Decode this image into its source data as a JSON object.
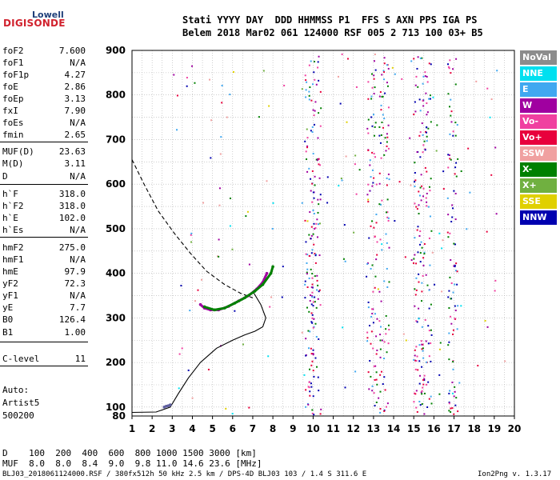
{
  "logo": {
    "top": "Lowell",
    "main": "DIGISONDE"
  },
  "header": {
    "row1": "Stati YYYY DAY  DDD HHMMSS P1  FFS S AXN PPS IGA PS",
    "row2": "Belem 2018 Mar02 061 124000 RSF 005 2 713 100 03+ B5"
  },
  "params": [
    {
      "name": "foF2",
      "value": "7.600"
    },
    {
      "name": "foF1",
      "value": "N/A"
    },
    {
      "name": "foF1p",
      "value": "4.27"
    },
    {
      "name": "foE",
      "value": "2.86"
    },
    {
      "name": "foEp",
      "value": "3.13"
    },
    {
      "name": "fxI",
      "value": "7.90"
    },
    {
      "name": "foEs",
      "value": "N/A"
    },
    {
      "name": "fmin",
      "value": "2.65"
    },
    {
      "name": "MUF(D)",
      "value": "23.63"
    },
    {
      "name": "M(D)",
      "value": "3.11"
    },
    {
      "name": "D",
      "value": "N/A"
    },
    {
      "name": "h`F",
      "value": "318.0"
    },
    {
      "name": "h`F2",
      "value": "318.0"
    },
    {
      "name": "h`E",
      "value": "102.0"
    },
    {
      "name": "h`Es",
      "value": "N/A"
    },
    {
      "name": "hmF2",
      "value": "275.0"
    },
    {
      "name": "hmF1",
      "value": "N/A"
    },
    {
      "name": "hmE",
      "value": "97.9"
    },
    {
      "name": "yF2",
      "value": "72.3"
    },
    {
      "name": "yF1",
      "value": "N/A"
    },
    {
      "name": "yE",
      "value": "7.7"
    },
    {
      "name": "B0",
      "value": "126.4"
    },
    {
      "name": "B1",
      "value": "1.00"
    },
    {
      "name": "C-level",
      "value": "11"
    }
  ],
  "auto": {
    "line1": "Auto:",
    "line2": "Artist5",
    "line3": "500200"
  },
  "legend": [
    {
      "label": "NoVal",
      "color": "#8c8c8c"
    },
    {
      "label": "NNE",
      "color": "#00e0f0"
    },
    {
      "label": "E",
      "color": "#40a8f0"
    },
    {
      "label": "W",
      "color": "#a000a0"
    },
    {
      "label": "Vo-",
      "color": "#f040a0"
    },
    {
      "label": "Vo+",
      "color": "#e8003c"
    },
    {
      "label": "SSW",
      "color": "#f0a0a0"
    },
    {
      "label": "X-",
      "color": "#008000"
    },
    {
      "label": "X+",
      "color": "#70b040"
    },
    {
      "label": "SSE",
      "color": "#e0d000"
    },
    {
      "label": "NNW",
      "color": "#0000b0"
    }
  ],
  "mufTable": {
    "drow": "D    100  200  400  600  800 1000 1500 3000 [km]",
    "mrow": "MUF  8.0  8.0  8.4  9.0  9.8 11.0 14.6 23.6 [MHz]"
  },
  "footer": {
    "left": "BLJ03_2018061124000.RSF / 380fx512h 50 kHz 2.5 km / DPS-4D BLJ03 103 / 1.4 S 311.6 E",
    "right": "Ion2Png v. 1.3.17"
  },
  "chart_data": {
    "type": "scatter",
    "title": "",
    "xlabel": "",
    "ylabel": "",
    "xlim": [
      1,
      20
    ],
    "ylim": [
      80,
      900
    ],
    "xticks": [
      1,
      2,
      3,
      4,
      5,
      6,
      7,
      8,
      9,
      10,
      11,
      12,
      13,
      14,
      15,
      16,
      17,
      18,
      19,
      20
    ],
    "yticks": [
      100,
      200,
      300,
      400,
      500,
      600,
      700,
      800,
      900
    ],
    "yticklabels_extra": [
      80
    ],
    "grid": true,
    "ionogram_traces": [
      {
        "name": "F2 trace (W)",
        "color": "#a000a0",
        "points": [
          [
            4.4,
            330
          ],
          [
            4.6,
            322
          ],
          [
            4.9,
            318
          ],
          [
            5.3,
            318
          ],
          [
            5.8,
            326
          ],
          [
            6.3,
            338
          ],
          [
            6.8,
            350
          ],
          [
            7.2,
            365
          ],
          [
            7.5,
            380
          ],
          [
            7.7,
            400
          ]
        ]
      },
      {
        "name": "F2 trace (X-)",
        "color": "#008000",
        "points": [
          [
            4.6,
            325
          ],
          [
            5.1,
            318
          ],
          [
            5.6,
            322
          ],
          [
            6.1,
            333
          ],
          [
            6.6,
            345
          ],
          [
            7.1,
            360
          ],
          [
            7.5,
            375
          ],
          [
            7.9,
            400
          ],
          [
            8.0,
            415
          ]
        ]
      },
      {
        "name": "E trace",
        "color": "#6060a0",
        "points": [
          [
            2.6,
            100
          ],
          [
            2.7,
            102
          ],
          [
            2.8,
            103
          ],
          [
            2.9,
            105
          ]
        ]
      }
    ],
    "profile_solid": [
      [
        1.0,
        88
      ],
      [
        2.2,
        89
      ],
      [
        2.9,
        100
      ],
      [
        3.3,
        130
      ],
      [
        3.8,
        165
      ],
      [
        4.4,
        200
      ],
      [
        5.2,
        232
      ],
      [
        6.0,
        250
      ],
      [
        6.6,
        262
      ],
      [
        7.1,
        270
      ],
      [
        7.5,
        280
      ],
      [
        7.65,
        300
      ],
      [
        7.4,
        330
      ],
      [
        7.0,
        360
      ]
    ],
    "profile_dashed": [
      [
        1.0,
        655
      ],
      [
        1.6,
        600
      ],
      [
        2.3,
        540
      ],
      [
        3.1,
        490
      ],
      [
        3.9,
        445
      ],
      [
        4.7,
        405
      ],
      [
        5.6,
        375
      ],
      [
        6.4,
        355
      ],
      [
        7.0,
        345
      ]
    ],
    "vertical_bands_mhz": [
      9.8,
      10.1,
      12.9,
      13.5,
      15.2,
      15.6,
      16.9
    ]
  }
}
